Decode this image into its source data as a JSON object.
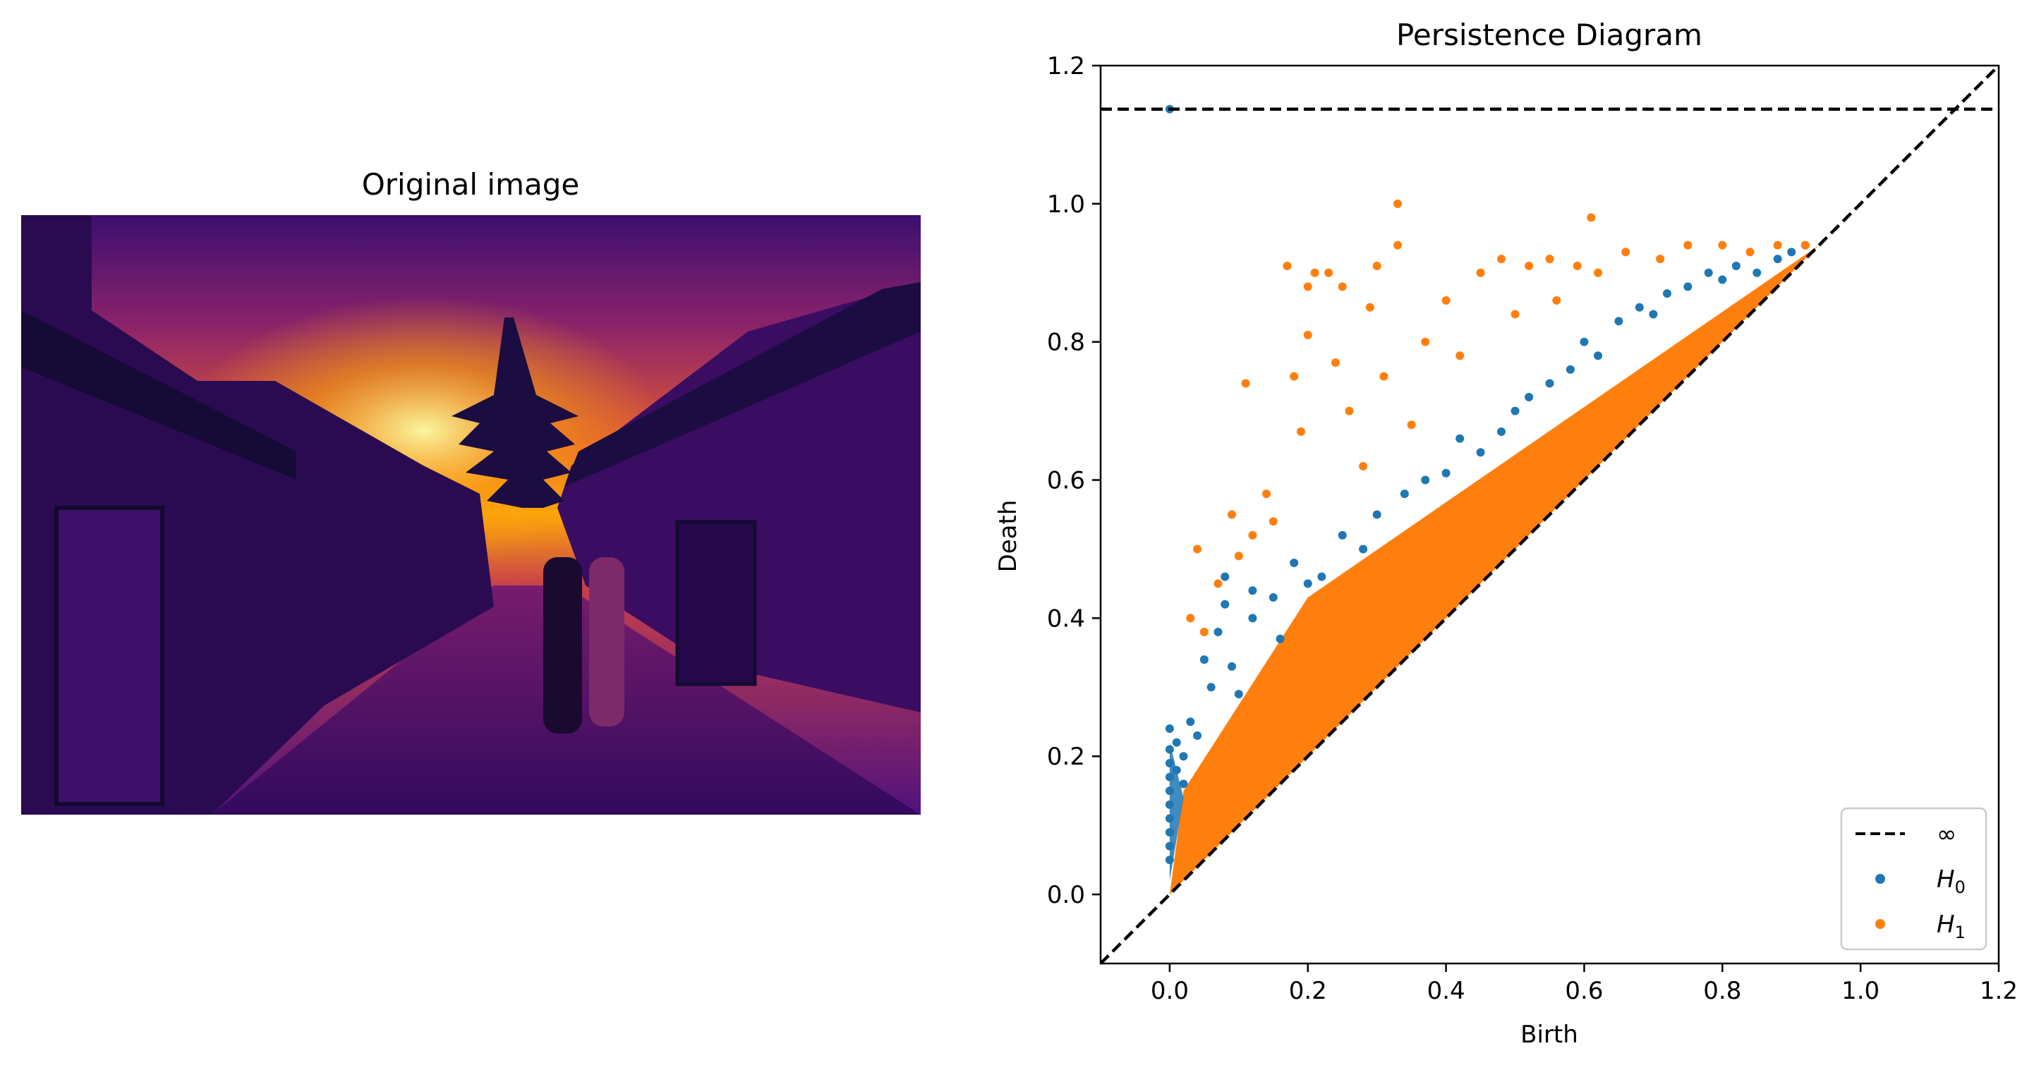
{
  "chart_data": [
    {
      "type": "image",
      "title": "Original image",
      "colormap": "inferno",
      "colors": {
        "sky_top": "#3b0f70",
        "sky_glow": "#fca50a",
        "street": "#51127c",
        "shadow": "#1b0c41"
      }
    },
    {
      "type": "scatter",
      "title": "Persistence Diagram",
      "xlabel": "Birth",
      "ylabel": "Death",
      "xlim": [
        -0.1,
        1.2
      ],
      "ylim": [
        -0.1,
        1.2
      ],
      "xticks": [
        "0.0",
        "0.2",
        "0.4",
        "0.6",
        "0.8",
        "1.0",
        "1.2"
      ],
      "yticks": [
        "0.0",
        "0.2",
        "0.4",
        "0.6",
        "0.8",
        "1.0",
        "1.2"
      ],
      "xtick_values": [
        0.0,
        0.2,
        0.4,
        0.6,
        0.8,
        1.0,
        1.2
      ],
      "ytick_values": [
        0.0,
        0.2,
        0.4,
        0.6,
        0.8,
        1.0,
        1.2
      ],
      "infinity_line_y": 1.137,
      "diagonal": true,
      "legend": {
        "position": "lower-right",
        "entries": [
          {
            "label": "∞",
            "kind": "dashed-line",
            "color": "#000000"
          },
          {
            "label": "H",
            "sub": "0",
            "kind": "point",
            "color": "#1f77b4"
          },
          {
            "label": "H",
            "sub": "1",
            "kind": "point",
            "color": "#ff7f0e"
          }
        ]
      },
      "series": [
        {
          "name": "H0",
          "color": "#1f77b4",
          "points": [
            [
              0.0,
              1.137
            ],
            [
              0.0,
              0.24
            ],
            [
              0.0,
              0.21
            ],
            [
              0.0,
              0.19
            ],
            [
              0.0,
              0.17
            ],
            [
              0.0,
              0.15
            ],
            [
              0.0,
              0.13
            ],
            [
              0.0,
              0.11
            ],
            [
              0.0,
              0.09
            ],
            [
              0.0,
              0.07
            ],
            [
              0.0,
              0.05
            ],
            [
              0.01,
              0.22
            ],
            [
              0.01,
              0.18
            ],
            [
              0.02,
              0.2
            ],
            [
              0.02,
              0.16
            ],
            [
              0.03,
              0.25
            ],
            [
              0.04,
              0.23
            ],
            [
              0.05,
              0.34
            ],
            [
              0.06,
              0.3
            ],
            [
              0.07,
              0.38
            ],
            [
              0.08,
              0.42
            ],
            [
              0.08,
              0.46
            ],
            [
              0.09,
              0.33
            ],
            [
              0.1,
              0.29
            ],
            [
              0.12,
              0.44
            ],
            [
              0.12,
              0.4
            ],
            [
              0.15,
              0.43
            ],
            [
              0.16,
              0.37
            ],
            [
              0.18,
              0.48
            ],
            [
              0.2,
              0.45
            ],
            [
              0.22,
              0.46
            ],
            [
              0.25,
              0.52
            ],
            [
              0.28,
              0.5
            ],
            [
              0.3,
              0.55
            ],
            [
              0.34,
              0.58
            ],
            [
              0.37,
              0.6
            ],
            [
              0.4,
              0.61
            ],
            [
              0.42,
              0.66
            ],
            [
              0.45,
              0.64
            ],
            [
              0.48,
              0.67
            ],
            [
              0.5,
              0.7
            ],
            [
              0.52,
              0.72
            ],
            [
              0.55,
              0.74
            ],
            [
              0.58,
              0.76
            ],
            [
              0.6,
              0.8
            ],
            [
              0.62,
              0.78
            ],
            [
              0.65,
              0.83
            ],
            [
              0.68,
              0.85
            ],
            [
              0.7,
              0.84
            ],
            [
              0.72,
              0.87
            ],
            [
              0.75,
              0.88
            ],
            [
              0.78,
              0.9
            ],
            [
              0.8,
              0.89
            ],
            [
              0.82,
              0.91
            ],
            [
              0.85,
              0.9
            ],
            [
              0.88,
              0.92
            ],
            [
              0.9,
              0.93
            ],
            [
              0.92,
              0.94
            ]
          ]
        },
        {
          "name": "H1",
          "color": "#ff7f0e",
          "points": [
            [
              0.33,
              1.0
            ],
            [
              0.33,
              0.94
            ],
            [
              0.61,
              0.98
            ],
            [
              0.17,
              0.91
            ],
            [
              0.21,
              0.9
            ],
            [
              0.23,
              0.9
            ],
            [
              0.3,
              0.91
            ],
            [
              0.2,
              0.88
            ],
            [
              0.25,
              0.88
            ],
            [
              0.29,
              0.85
            ],
            [
              0.2,
              0.81
            ],
            [
              0.24,
              0.77
            ],
            [
              0.11,
              0.74
            ],
            [
              0.18,
              0.75
            ],
            [
              0.19,
              0.67
            ],
            [
              0.15,
              0.54
            ],
            [
              0.12,
              0.52
            ],
            [
              0.09,
              0.55
            ],
            [
              0.03,
              0.4
            ],
            [
              0.04,
              0.5
            ],
            [
              0.07,
              0.45
            ],
            [
              0.05,
              0.38
            ],
            [
              0.1,
              0.49
            ],
            [
              0.14,
              0.58
            ],
            [
              0.26,
              0.7
            ],
            [
              0.31,
              0.75
            ],
            [
              0.37,
              0.8
            ],
            [
              0.4,
              0.86
            ],
            [
              0.45,
              0.9
            ],
            [
              0.48,
              0.92
            ],
            [
              0.52,
              0.91
            ],
            [
              0.55,
              0.92
            ],
            [
              0.59,
              0.91
            ],
            [
              0.62,
              0.9
            ],
            [
              0.66,
              0.93
            ],
            [
              0.71,
              0.92
            ],
            [
              0.75,
              0.94
            ],
            [
              0.8,
              0.94
            ],
            [
              0.84,
              0.93
            ],
            [
              0.88,
              0.94
            ],
            [
              0.92,
              0.94
            ],
            [
              0.42,
              0.78
            ],
            [
              0.5,
              0.84
            ],
            [
              0.56,
              0.86
            ],
            [
              0.35,
              0.68
            ],
            [
              0.28,
              0.62
            ]
          ],
          "band": {
            "from_x": 0.0,
            "to_x": 0.94,
            "lower": "diagonal",
            "upper_at_start": 0.15,
            "upper_at_end": 0.94
          }
        }
      ]
    }
  ]
}
